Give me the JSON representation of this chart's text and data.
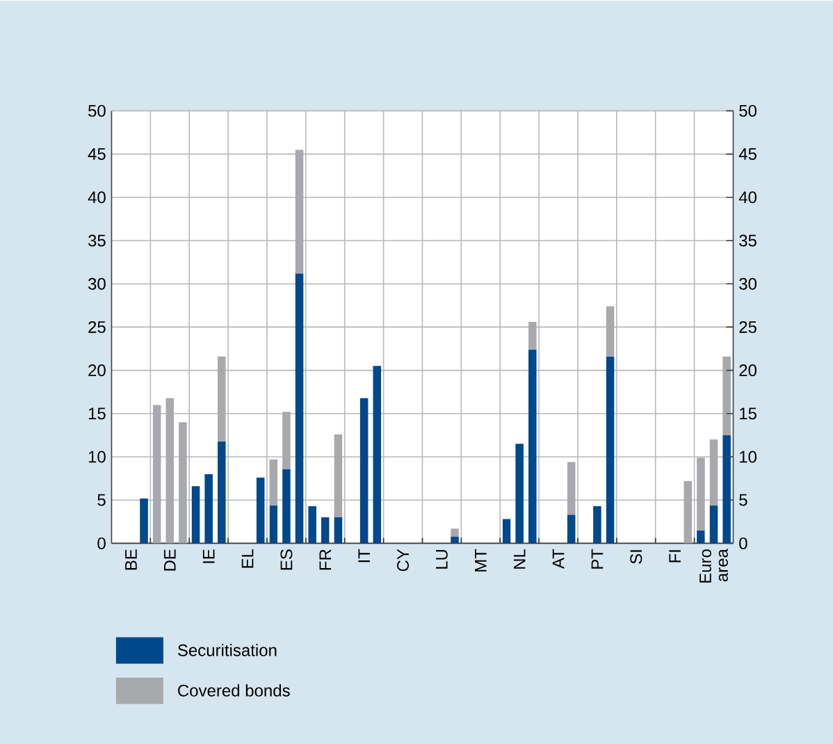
{
  "chart_data": {
    "type": "bar",
    "stacked": true,
    "categories": [
      null,
      "BE",
      null,
      null,
      "DE",
      null,
      null,
      "IE",
      null,
      null,
      "EL",
      null,
      null,
      "ES",
      null,
      null,
      "FR",
      null,
      null,
      "IT",
      null,
      null,
      "CY",
      null,
      null,
      "LU",
      null,
      null,
      "MT",
      null,
      null,
      "NL",
      null,
      null,
      "AT",
      null,
      null,
      "PT",
      null,
      null,
      "SI",
      null,
      null,
      "FI",
      null,
      null,
      "Euro area",
      null
    ],
    "series": [
      {
        "name": "Securitisation",
        "color": "#00488c",
        "values": [
          null,
          null,
          5.2,
          null,
          null,
          null,
          6.6,
          8.0,
          11.8,
          null,
          null,
          7.6,
          4.4,
          8.6,
          31.2,
          4.3,
          3.0,
          3.0,
          null,
          16.8,
          20.5,
          null,
          null,
          null,
          null,
          null,
          0.8,
          null,
          null,
          null,
          2.8,
          11.5,
          22.4,
          null,
          null,
          3.3,
          null,
          4.3,
          21.6,
          null,
          null,
          null,
          null,
          null,
          null,
          1.5,
          4.4,
          12.5
        ]
      },
      {
        "name": "Covered bonds",
        "color": "#a7a9ac",
        "values": [
          null,
          null,
          null,
          16.0,
          16.8,
          14.0,
          null,
          null,
          9.8,
          null,
          null,
          null,
          5.3,
          6.6,
          14.3,
          null,
          null,
          9.6,
          null,
          null,
          null,
          null,
          null,
          null,
          null,
          null,
          0.9,
          null,
          null,
          null,
          null,
          null,
          3.2,
          null,
          null,
          6.1,
          null,
          null,
          5.8,
          null,
          null,
          null,
          null,
          null,
          7.2,
          8.4,
          7.6,
          9.1
        ]
      }
    ],
    "ylim": [
      0,
      50
    ],
    "yticks": [
      0,
      5,
      10,
      15,
      20,
      25,
      30,
      35,
      40,
      45,
      50
    ],
    "y2lim": [
      0,
      50
    ],
    "y2ticks": [
      0,
      5,
      10,
      15,
      20,
      25,
      30,
      35,
      40,
      45,
      50
    ],
    "grid": true,
    "legend": "bottom"
  }
}
